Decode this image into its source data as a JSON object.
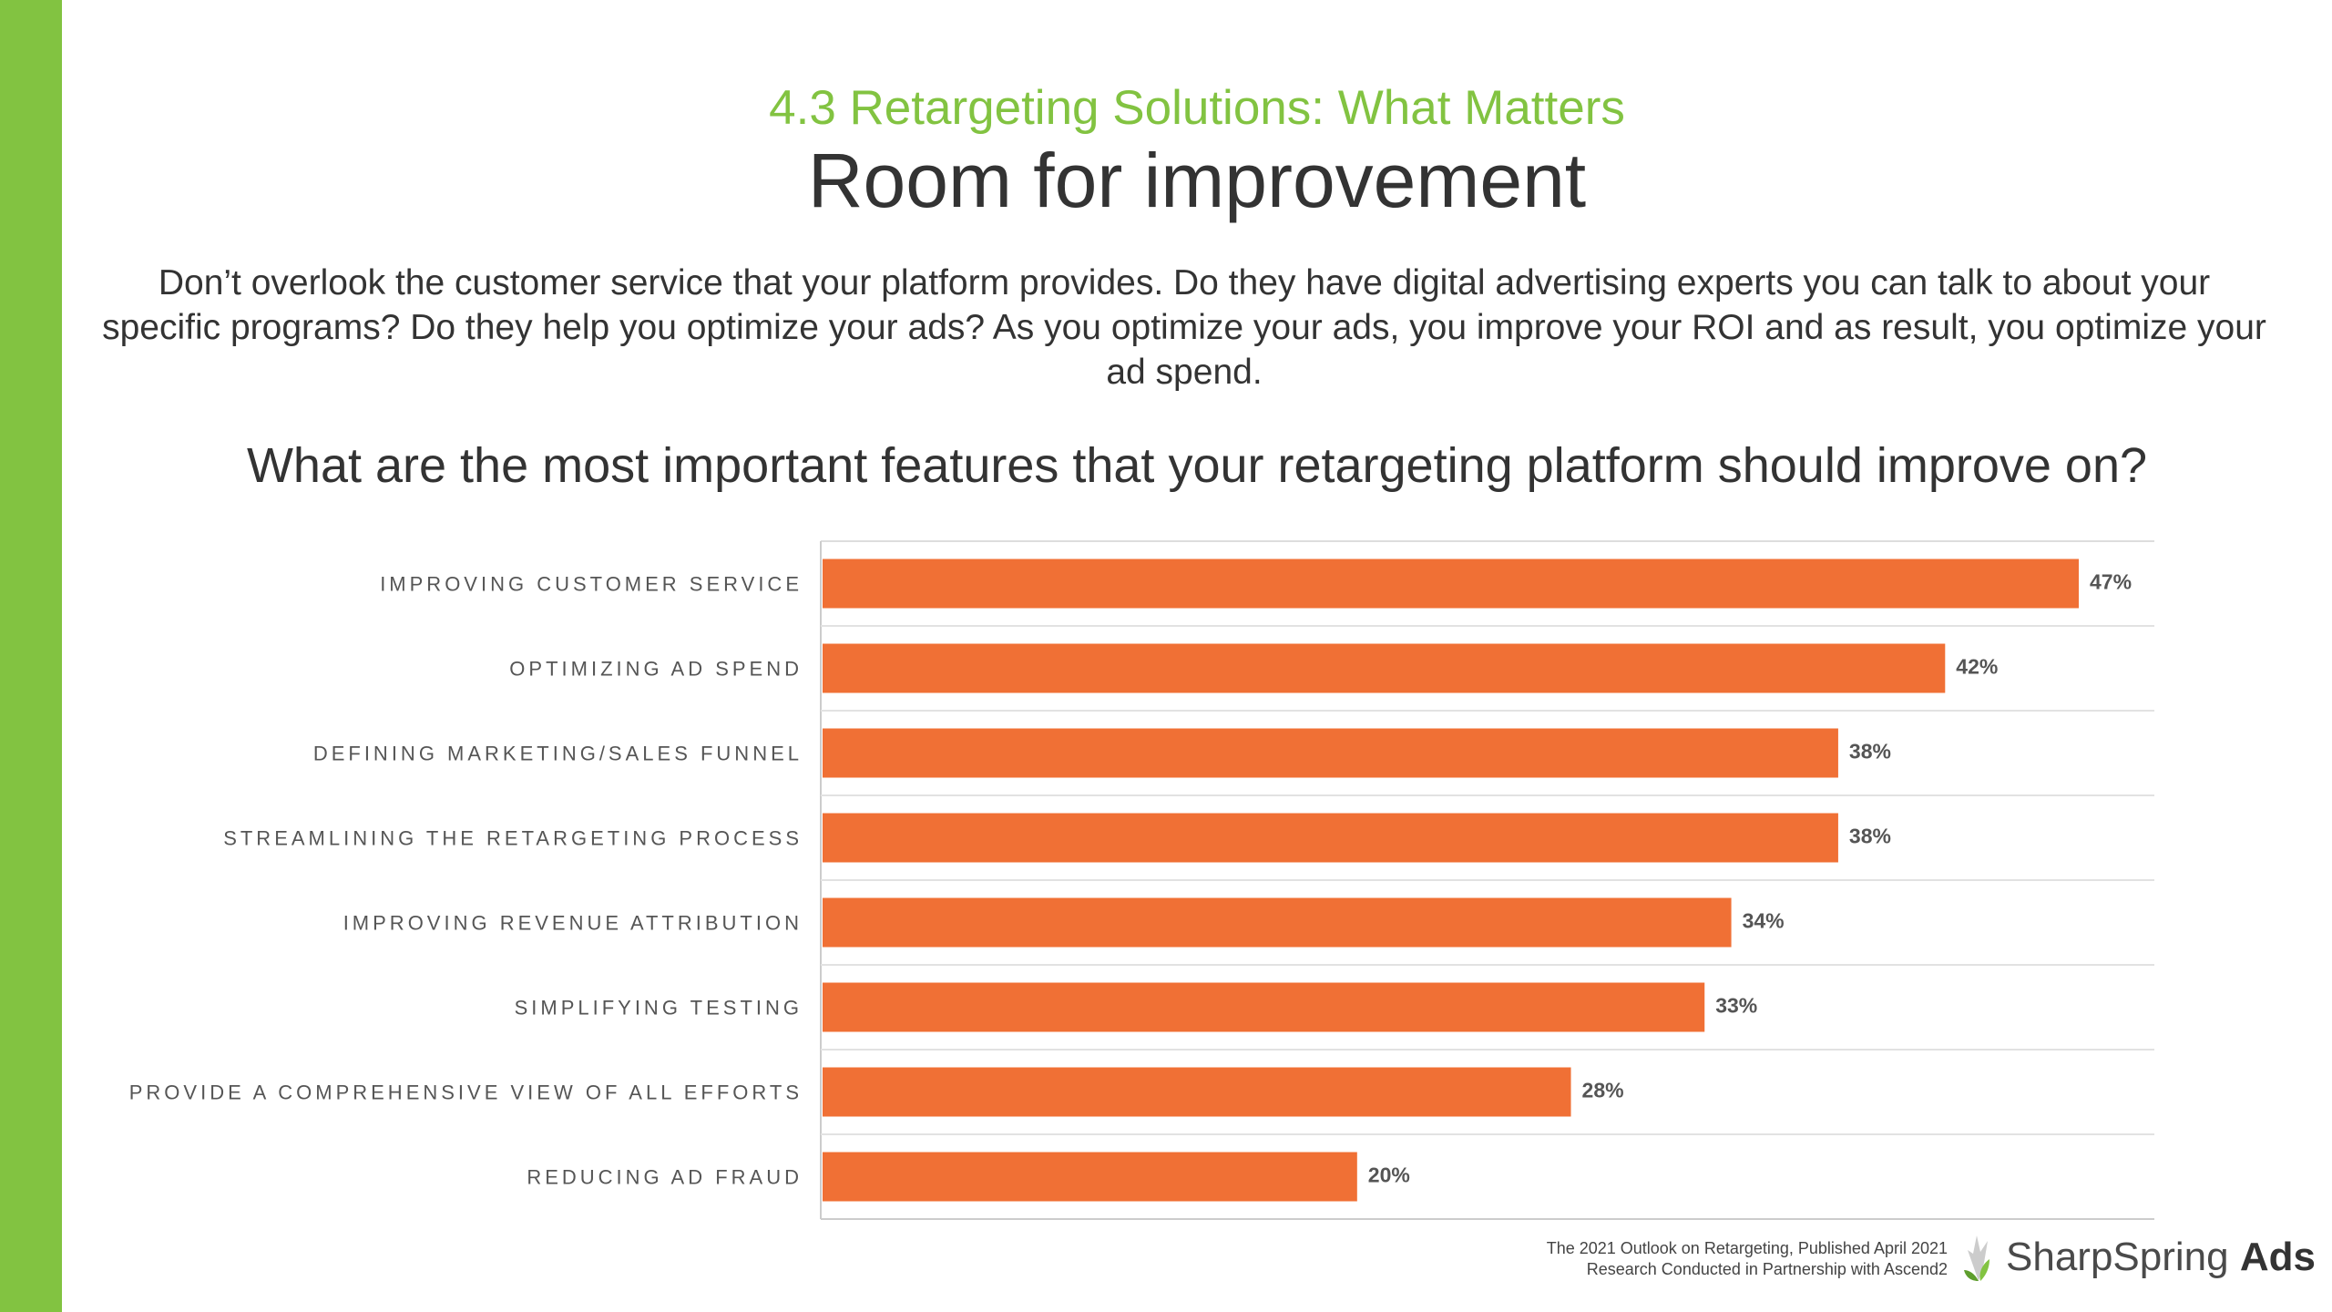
{
  "header": {
    "section_title": "4.3 Retargeting Solutions: What Matters",
    "page_title": "Room for improvement"
  },
  "intro_text": "Don’t overlook the customer service that your platform provides. Do they have digital advertising experts you can talk to about your specific programs? Do they help you optimize your ads? As you optimize your ads, you improve your ROI and as result, you optimize your ad spend.",
  "question": "What are the most important features that your retargeting platform should improve on?",
  "chart_data": {
    "type": "bar",
    "orientation": "horizontal",
    "categories": [
      "IMPROVING CUSTOMER SERVICE",
      "OPTIMIZING AD SPEND",
      "DEFINING MARKETING/SALES FUNNEL",
      "STREAMLINING THE RETARGETING PROCESS",
      "IMPROVING REVENUE ATTRIBUTION",
      "SIMPLIFYING TESTING",
      "PROVIDE A COMPREHENSIVE VIEW OF ALL EFFORTS",
      "REDUCING AD FRAUD"
    ],
    "values": [
      47,
      42,
      38,
      38,
      34,
      33,
      28,
      20
    ],
    "value_labels": [
      "47%",
      "42%",
      "38%",
      "38%",
      "34%",
      "33%",
      "28%",
      "20%"
    ],
    "xlim": [
      0,
      50
    ],
    "bar_color": "#f07035",
    "grid": "horizontal separators"
  },
  "footer": {
    "line1": "The 2021 Outlook on Retargeting, Published April 2021",
    "line2": "Research Conducted in Partnership with Ascend2"
  },
  "logo": {
    "name": "SharpSpring",
    "suffix": "Ads",
    "icon": "leaf-logo-icon"
  },
  "colors": {
    "accent_green": "#82c341",
    "bar_orange": "#f07035"
  }
}
